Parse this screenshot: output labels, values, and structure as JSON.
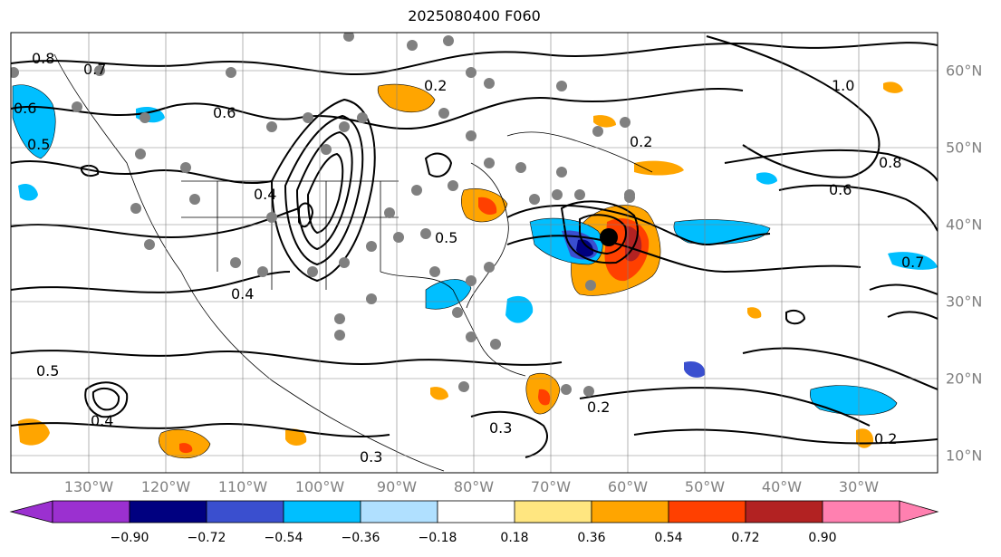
{
  "title": "2025080400 F060",
  "lon_labels": [
    "130°W",
    "120°W",
    "110°W",
    "100°W",
    "90°W",
    "80°W",
    "70°W",
    "60°W",
    "50°W",
    "40°W",
    "30°W"
  ],
  "lat_labels": [
    "60°N",
    "50°N",
    "40°N",
    "30°N",
    "20°N",
    "10°N"
  ],
  "colorbar": {
    "ticks": [
      "−0.90",
      "−0.72",
      "−0.54",
      "−0.36",
      "−0.18",
      "0.18",
      "0.36",
      "0.54",
      "0.72",
      "0.90"
    ],
    "colors": [
      "#9b30d0",
      "#000080",
      "#3a4fcf",
      "#00bfff",
      "#b0e0ff",
      "#ffffff",
      "#ffe680",
      "#ffa500",
      "#ff4000",
      "#b22222",
      "#ff80b0"
    ]
  },
  "contour_labels": [
    "0.8",
    "0.7",
    "0.6",
    "0.5",
    "0.4",
    "0.2",
    "0.3",
    "1.0",
    "0.2",
    "0.8",
    "0.6",
    "0.4",
    "0.5",
    "0.4",
    "0.2",
    "0.3",
    "0.7",
    "0.6",
    "0.5",
    "0.2"
  ],
  "marker": "storm-center"
}
